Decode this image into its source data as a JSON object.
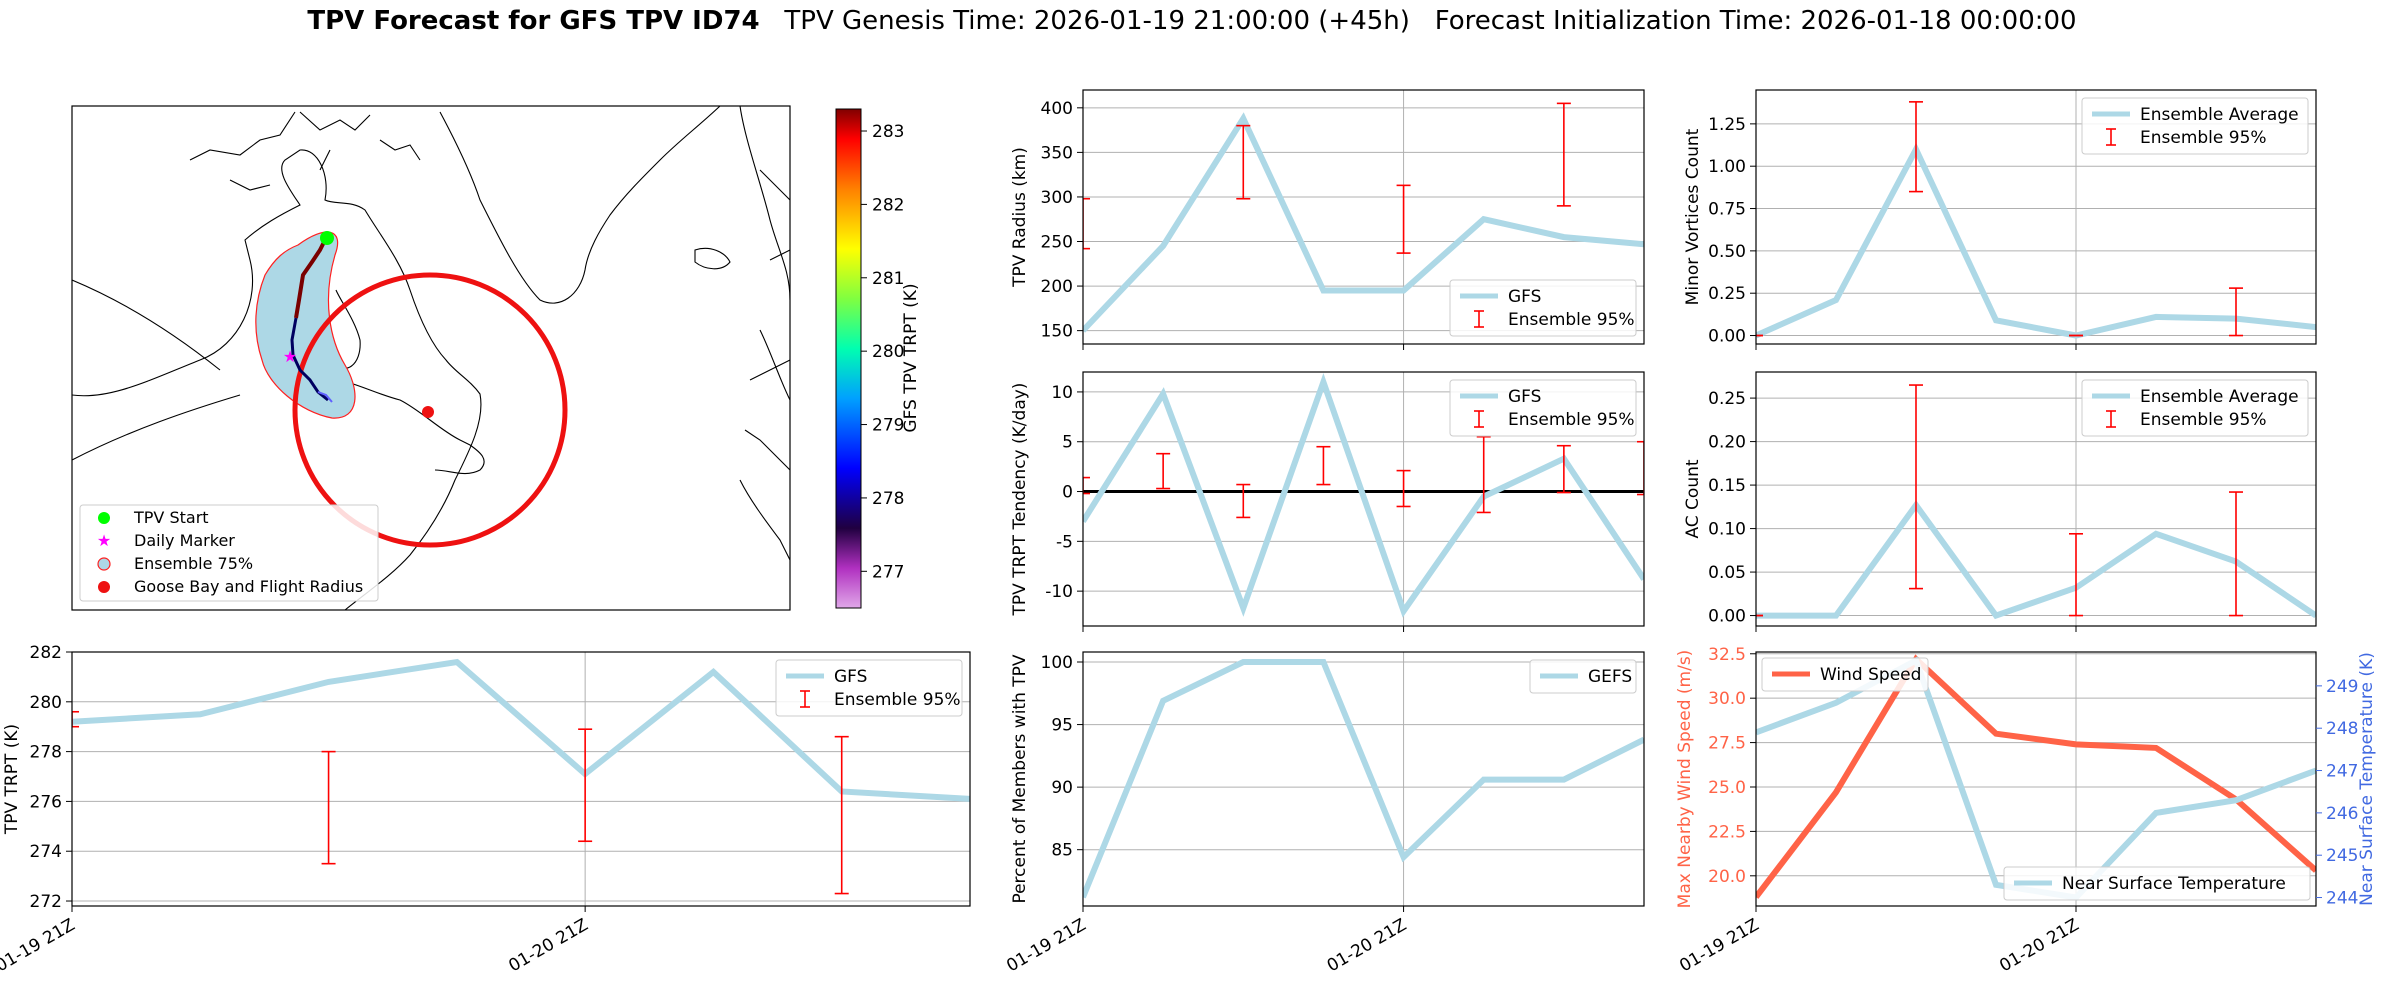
{
  "header": {
    "title_bold": "TPV Forecast for GFS TPV ID74",
    "title_rest": "   TPV Genesis Time: 2026-01-19 21:00:00 (+45h)   Forecast Initialization Time: 2026-01-18 00:00:00"
  },
  "colors": {
    "gfs_line": "#add8e6",
    "error_bar": "#ff0000",
    "wind": "#ff6347",
    "temp_axis": "#4169e1",
    "zero_line": "#000000",
    "grid": "#b0b0b0"
  },
  "chart_data": [
    {
      "id": "map",
      "type": "map",
      "title": "",
      "colorbar": {
        "label": "GFS TPV TRPT (K)",
        "ticks": [
          277,
          278,
          279,
          280,
          281,
          282,
          283
        ],
        "range": [
          276.5,
          283.3
        ]
      },
      "legend": [
        "TPV Start",
        "Daily Marker",
        "Ensemble 75%",
        "Goose Bay and Flight Radius"
      ]
    },
    {
      "id": "radius",
      "type": "line",
      "ylabel": "TPV Radius (km)",
      "xlim": [
        0,
        7
      ],
      "ylim": [
        135,
        420
      ],
      "yticks": [
        150,
        200,
        250,
        300,
        350,
        400
      ],
      "xticks": [
        0,
        4
      ],
      "series": [
        {
          "name": "GFS",
          "x": [
            0,
            1,
            2,
            3,
            4,
            5,
            6,
            7
          ],
          "values": [
            150,
            245,
            388,
            195,
            195,
            275,
            255,
            247
          ]
        }
      ],
      "errorbars": {
        "name": "Ensemble 95%",
        "x": [
          0,
          2,
          4,
          6
        ],
        "low": [
          242,
          298,
          237,
          290
        ],
        "high": [
          298,
          380,
          313,
          405
        ]
      },
      "legend_loc": "lower-right"
    },
    {
      "id": "minor",
      "type": "line",
      "ylabel": "Minor Vortices Count",
      "xlim": [
        0,
        7
      ],
      "ylim": [
        -0.05,
        1.45
      ],
      "yticks": [
        0.0,
        0.25,
        0.5,
        0.75,
        1.0,
        1.25
      ],
      "xticks": [
        0,
        4
      ],
      "series": [
        {
          "name": "Ensemble Average",
          "x": [
            0,
            1,
            2,
            3,
            4,
            5,
            6,
            7
          ],
          "values": [
            0.0,
            0.21,
            1.1,
            0.09,
            0.0,
            0.11,
            0.1,
            0.05
          ]
        }
      ],
      "errorbars": {
        "name": "Ensemble 95%",
        "x": [
          0,
          2,
          4,
          6
        ],
        "low": [
          0,
          0.85,
          0,
          0
        ],
        "high": [
          0,
          1.38,
          0,
          0.28
        ]
      },
      "legend_loc": "upper-right"
    },
    {
      "id": "tendency",
      "type": "line",
      "ylabel": "TPV TRPT Tendency (K/day)",
      "xlim": [
        0,
        7
      ],
      "ylim": [
        -13.5,
        12
      ],
      "yticks": [
        -10,
        -5,
        0,
        5,
        10
      ],
      "xticks": [
        0,
        4
      ],
      "zero_line": true,
      "series": [
        {
          "name": "GFS",
          "x": [
            0,
            1,
            2,
            3,
            4,
            5,
            6,
            7
          ],
          "values": [
            -3,
            9.8,
            -11.7,
            11,
            -12,
            -0.5,
            3.3,
            -8.8
          ]
        }
      ],
      "errorbars": {
        "name": "Ensemble 95%",
        "x": [
          0,
          1,
          2,
          3,
          4,
          5,
          6,
          7
        ],
        "low": [
          -0.2,
          0.3,
          -2.6,
          0.7,
          -1.5,
          -2.1,
          -0.1,
          -0.3
        ],
        "high": [
          1.4,
          3.8,
          0.7,
          4.5,
          2.1,
          5.5,
          4.6,
          5.0
        ]
      },
      "legend_loc": "upper-right"
    },
    {
      "id": "ac",
      "type": "line",
      "ylabel": "AC Count",
      "xlim": [
        0,
        7
      ],
      "ylim": [
        -0.012,
        0.28
      ],
      "yticks": [
        0.0,
        0.05,
        0.1,
        0.15,
        0.2,
        0.25
      ],
      "xticks": [
        0,
        4
      ],
      "series": [
        {
          "name": "Ensemble Average",
          "x": [
            0,
            1,
            2,
            3,
            4,
            5,
            6,
            7
          ],
          "values": [
            0.0,
            0.0,
            0.127,
            0.0,
            0.032,
            0.094,
            0.062,
            0.0
          ]
        }
      ],
      "errorbars": {
        "name": "Ensemble 95%",
        "x": [
          0,
          2,
          4,
          6
        ],
        "low": [
          0,
          0.031,
          0,
          0
        ],
        "high": [
          0,
          0.265,
          0.094,
          0.142
        ]
      },
      "legend_loc": "upper-right"
    },
    {
      "id": "trpt",
      "type": "line",
      "ylabel": "TPV TRPT (K)",
      "xlim": [
        0,
        7
      ],
      "ylim": [
        271.8,
        282
      ],
      "yticks": [
        272,
        274,
        276,
        278,
        280,
        282
      ],
      "xticks": [
        0,
        4
      ],
      "xticklabels": [
        "01-19 21Z",
        "01-20 21Z"
      ],
      "series": [
        {
          "name": "GFS",
          "x": [
            0,
            1,
            2,
            3,
            4,
            5,
            6,
            7
          ],
          "values": [
            279.2,
            279.5,
            280.8,
            281.6,
            277.1,
            281.2,
            276.4,
            276.1
          ]
        }
      ],
      "errorbars": {
        "name": "Ensemble 95%",
        "x": [
          0,
          2,
          4,
          6
        ],
        "low": [
          279.0,
          273.5,
          274.4,
          272.3
        ],
        "high": [
          279.6,
          278.0,
          278.9,
          278.6
        ]
      },
      "legend_loc": "upper-right"
    },
    {
      "id": "percent",
      "type": "line",
      "ylabel": "Percent of Members with TPV",
      "xlim": [
        0,
        7
      ],
      "ylim": [
        80.5,
        100.8
      ],
      "yticks": [
        85,
        90,
        95,
        100
      ],
      "xticks": [
        0,
        4
      ],
      "xticklabels": [
        "01-19 21Z",
        "01-20 21Z"
      ],
      "series": [
        {
          "name": "GEFS",
          "x": [
            0,
            1,
            2,
            3,
            4,
            5,
            6,
            7
          ],
          "values": [
            81.2,
            96.9,
            100,
            100,
            84.4,
            90.6,
            90.6,
            93.8
          ]
        }
      ],
      "legend_loc": "upper-right"
    },
    {
      "id": "wind",
      "type": "line",
      "ylabel": "Max Nearby Wind Speed (m/s)",
      "ylabel2": "Near Surface Temperature (K)",
      "xlim": [
        0,
        7
      ],
      "ylim": [
        18.3,
        32.6
      ],
      "yticks": [
        20.0,
        22.5,
        25.0,
        27.5,
        30.0,
        32.5
      ],
      "ylim2": [
        243.8,
        249.8
      ],
      "yticks2": [
        244,
        245,
        246,
        247,
        248,
        249
      ],
      "xticks": [
        0,
        4
      ],
      "xticklabels": [
        "01-19 21Z",
        "01-20 21Z"
      ],
      "series": [
        {
          "name": "Wind Speed",
          "axis": "left",
          "x": [
            0,
            1,
            2,
            3,
            4,
            5,
            6,
            7
          ],
          "values": [
            18.8,
            24.7,
            32.2,
            28.0,
            27.4,
            27.2,
            24.3,
            20.3
          ]
        },
        {
          "name": "Near Surface Temperature",
          "axis": "right",
          "x": [
            0,
            1,
            2,
            3,
            4,
            5,
            6,
            7
          ],
          "values": [
            247.9,
            248.6,
            249.6,
            244.3,
            244.0,
            246.0,
            246.3,
            247.0
          ]
        }
      ],
      "legend_loc": "upper-left / lower-right"
    }
  ]
}
